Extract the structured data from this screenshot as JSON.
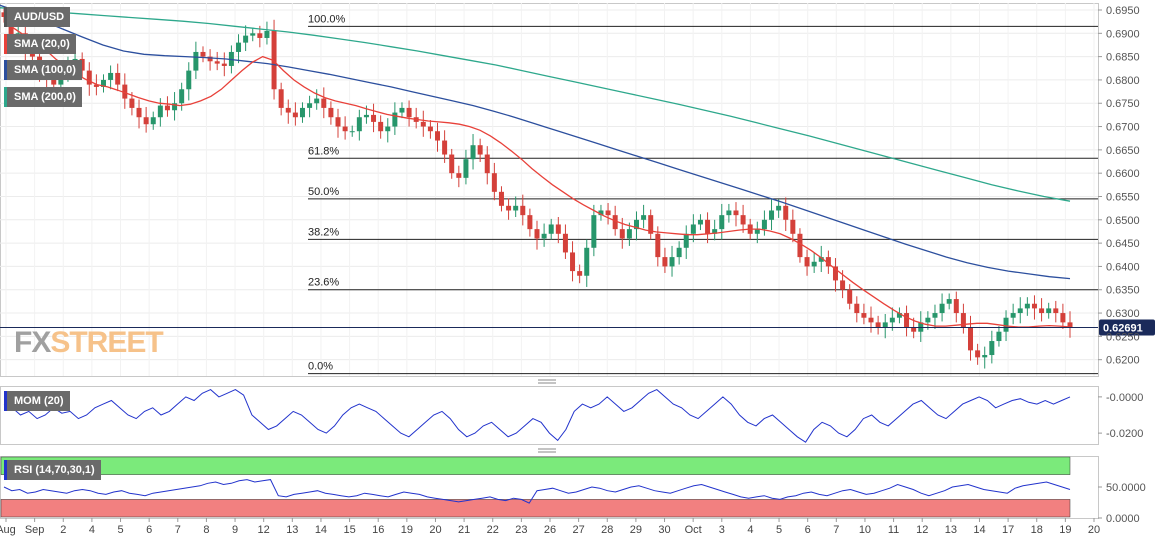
{
  "instrument": "AUD/USD",
  "watermark": {
    "part1": "FX",
    "part2": "STREET"
  },
  "indicators": {
    "sma20": "SMA (20,0)",
    "sma100": "SMA (100,0)",
    "sma200": "SMA (200,0)",
    "mom": "MOM (20)",
    "rsi": "RSI (14,70,30,1)"
  },
  "colors": {
    "sma20": "#e8413a",
    "sma100": "#2c4f9e",
    "sma200": "#2ea88c",
    "up": "#27966b",
    "down": "#d4403a",
    "mom_line": "#2233cc",
    "rsi_line": "#2233cc",
    "rsi_over": "#7bea7b",
    "rsi_under": "#f28080",
    "label_bg": "#6a6a6a"
  },
  "chart_data": [
    {
      "type": "candlestick",
      "title": "AUD/USD",
      "ylim": [
        0.6165,
        0.6965
      ],
      "y_ticks": [
        "0.6950",
        "0.6900",
        "0.6850",
        "0.6800",
        "0.6750",
        "0.6700",
        "0.6650",
        "0.6600",
        "0.6550",
        "0.6500",
        "0.6450",
        "0.6400",
        "0.6350",
        "0.6300",
        "0.6250",
        "0.6200"
      ],
      "x_ticks": [
        "Aug",
        "Sep",
        "2",
        "4",
        "5",
        "6",
        "7",
        "8",
        "9",
        "12",
        "13",
        "14",
        "15",
        "16",
        "19",
        "20",
        "21",
        "22",
        "23",
        "26",
        "27",
        "28",
        "29",
        "30",
        "Oct",
        "3",
        "4",
        "5",
        "6",
        "7",
        "10",
        "11",
        "12",
        "13",
        "14",
        "17",
        "18",
        "19",
        "20"
      ],
      "current_price": "0.62691",
      "fibonacci": [
        {
          "label": "100.0%",
          "value": 0.6915
        },
        {
          "label": "61.8%",
          "value": 0.6632
        },
        {
          "label": "50.0%",
          "value": 0.6545
        },
        {
          "label": "38.2%",
          "value": 0.6458
        },
        {
          "label": "23.6%",
          "value": 0.635
        },
        {
          "label": "0.0%",
          "value": 0.617
        }
      ],
      "close_series": [
        0.6935,
        0.6895,
        0.69,
        0.686,
        0.685,
        0.682,
        0.68,
        0.679,
        0.681,
        0.683,
        0.6845,
        0.682,
        0.679,
        0.6785,
        0.68,
        0.6815,
        0.679,
        0.676,
        0.674,
        0.672,
        0.6705,
        0.672,
        0.6745,
        0.6735,
        0.675,
        0.678,
        0.682,
        0.686,
        0.685,
        0.684,
        0.6835,
        0.683,
        0.686,
        0.688,
        0.6895,
        0.69,
        0.689,
        0.6905,
        0.678,
        0.674,
        0.673,
        0.672,
        0.674,
        0.675,
        0.676,
        0.674,
        0.672,
        0.67,
        0.669,
        0.669,
        0.672,
        0.6725,
        0.671,
        0.669,
        0.67,
        0.673,
        0.674,
        0.672,
        0.671,
        0.67,
        0.669,
        0.667,
        0.664,
        0.66,
        0.659,
        0.663,
        0.666,
        0.664,
        0.66,
        0.656,
        0.653,
        0.652,
        0.653,
        0.651,
        0.648,
        0.646,
        0.647,
        0.649,
        0.647,
        0.643,
        0.639,
        0.638,
        0.644,
        0.651,
        0.652,
        0.651,
        0.648,
        0.646,
        0.648,
        0.65,
        0.651,
        0.647,
        0.642,
        0.64,
        0.642,
        0.644,
        0.647,
        0.649,
        0.65,
        0.647,
        0.648,
        0.651,
        0.652,
        0.651,
        0.649,
        0.647,
        0.648,
        0.65,
        0.652,
        0.653,
        0.65,
        0.647,
        0.642,
        0.64,
        0.641,
        0.642,
        0.64,
        0.637,
        0.635,
        0.632,
        0.63,
        0.629,
        0.628,
        0.627,
        0.628,
        0.629,
        0.63,
        0.627,
        0.626,
        0.628,
        0.629,
        0.63,
        0.632,
        0.633,
        0.63,
        0.627,
        0.622,
        0.6205,
        0.621,
        0.624,
        0.626,
        0.629,
        0.63,
        0.631,
        0.632,
        0.631,
        0.63,
        0.631,
        0.63,
        0.628,
        0.6269
      ],
      "sma20_series": [
        0.6925,
        0.691,
        0.6895,
        0.688,
        0.6865,
        0.6845,
        0.6828,
        0.6812,
        0.68,
        0.679,
        0.6785,
        0.6778,
        0.677,
        0.6762,
        0.6755,
        0.675,
        0.6748,
        0.6745,
        0.6748,
        0.6755,
        0.6765,
        0.678,
        0.68,
        0.682,
        0.6838,
        0.685,
        0.6842,
        0.682,
        0.68,
        0.6785,
        0.6772,
        0.6762,
        0.6755,
        0.675,
        0.6745,
        0.6738,
        0.6732,
        0.6726,
        0.6722,
        0.6718,
        0.6715,
        0.6712,
        0.671,
        0.6708,
        0.6705,
        0.67,
        0.6692,
        0.668,
        0.6665,
        0.6648,
        0.663,
        0.661,
        0.6592,
        0.6575,
        0.656,
        0.6545,
        0.6532,
        0.652,
        0.6508,
        0.6498,
        0.649,
        0.6484,
        0.6478,
        0.6474,
        0.6472,
        0.647,
        0.6468,
        0.6468,
        0.647,
        0.6472,
        0.6475,
        0.6478,
        0.648,
        0.648,
        0.6476,
        0.647,
        0.646,
        0.6448,
        0.6434,
        0.6418,
        0.64,
        0.6383,
        0.6366,
        0.635,
        0.6335,
        0.632,
        0.6306,
        0.6293,
        0.6283,
        0.6276,
        0.6272,
        0.6272,
        0.6274,
        0.6276,
        0.6278,
        0.6278,
        0.6275,
        0.6272,
        0.627,
        0.627,
        0.6272,
        0.6273,
        0.6272,
        0.627
      ],
      "sma100_series": [
        0.696,
        0.6945,
        0.6928,
        0.691,
        0.6892,
        0.6875,
        0.6862,
        0.6855,
        0.6852,
        0.685,
        0.6848,
        0.6845,
        0.684,
        0.6835,
        0.6828,
        0.682,
        0.6812,
        0.6803,
        0.6794,
        0.6785,
        0.6775,
        0.6765,
        0.6755,
        0.6745,
        0.6733,
        0.672,
        0.6706,
        0.6692,
        0.6678,
        0.6664,
        0.665,
        0.6636,
        0.6622,
        0.6608,
        0.6594,
        0.658,
        0.6566,
        0.6552,
        0.6538,
        0.6523,
        0.6508,
        0.6493,
        0.6478,
        0.6463,
        0.6448,
        0.6434,
        0.642,
        0.6408,
        0.6398,
        0.639,
        0.6384,
        0.6378,
        0.6374
      ],
      "sma200_series": [
        0.6955,
        0.695,
        0.6946,
        0.6942,
        0.6938,
        0.6934,
        0.693,
        0.6926,
        0.6921,
        0.6915,
        0.6909,
        0.6903,
        0.6896,
        0.6888,
        0.688,
        0.6871,
        0.6862,
        0.6852,
        0.6842,
        0.6832,
        0.682,
        0.6808,
        0.6796,
        0.6784,
        0.6772,
        0.676,
        0.6748,
        0.6735,
        0.6722,
        0.6708,
        0.6694,
        0.668,
        0.6665,
        0.665,
        0.6635,
        0.662,
        0.6605,
        0.659,
        0.6575,
        0.6562,
        0.655,
        0.654
      ]
    },
    {
      "type": "line",
      "title": "MOM (20)",
      "ylim": [
        -0.026,
        0.006
      ],
      "y_ticks": [
        "-0.0000",
        "-0.0200"
      ],
      "values": [
        -0.004,
        -0.006,
        -0.01,
        -0.008,
        -0.012,
        -0.01,
        -0.006,
        -0.009,
        -0.008,
        -0.012,
        -0.01,
        -0.006,
        -0.004,
        -0.002,
        -0.006,
        -0.01,
        -0.012,
        -0.008,
        -0.006,
        -0.01,
        -0.008,
        -0.004,
        0.0,
        -0.002,
        0.002,
        0.004,
        0.0,
        0.002,
        0.004,
        0.001,
        -0.01,
        -0.014,
        -0.018,
        -0.016,
        -0.012,
        -0.008,
        -0.01,
        -0.014,
        -0.018,
        -0.02,
        -0.016,
        -0.01,
        -0.006,
        -0.004,
        -0.006,
        -0.008,
        -0.012,
        -0.016,
        -0.02,
        -0.022,
        -0.018,
        -0.014,
        -0.01,
        -0.008,
        -0.012,
        -0.018,
        -0.022,
        -0.02,
        -0.016,
        -0.014,
        -0.018,
        -0.022,
        -0.02,
        -0.016,
        -0.012,
        -0.014,
        -0.02,
        -0.024,
        -0.018,
        -0.008,
        -0.004,
        -0.006,
        -0.004,
        0.0,
        -0.004,
        -0.008,
        -0.006,
        -0.002,
        0.002,
        0.004,
        0.0,
        -0.004,
        -0.006,
        -0.01,
        -0.012,
        -0.008,
        -0.004,
        0.0,
        -0.004,
        -0.01,
        -0.014,
        -0.016,
        -0.012,
        -0.01,
        -0.014,
        -0.018,
        -0.022,
        -0.025,
        -0.018,
        -0.014,
        -0.016,
        -0.02,
        -0.022,
        -0.018,
        -0.012,
        -0.01,
        -0.014,
        -0.016,
        -0.012,
        -0.008,
        -0.004,
        -0.002,
        -0.006,
        -0.01,
        -0.012,
        -0.008,
        -0.004,
        -0.002,
        0.0,
        -0.002,
        -0.006,
        -0.004,
        -0.002,
        -0.001,
        -0.003,
        -0.004,
        -0.002,
        -0.004,
        -0.002,
        0.0
      ]
    },
    {
      "type": "line",
      "title": "RSI (14,70,30,1)",
      "ylim": [
        0,
        100
      ],
      "y_ticks": [
        "50.0000",
        "0.0000"
      ],
      "overbought": 70,
      "oversold": 30,
      "values": [
        50,
        44,
        46,
        40,
        42,
        46,
        44,
        42,
        40,
        44,
        46,
        44,
        40,
        38,
        42,
        44,
        40,
        38,
        36,
        40,
        42,
        44,
        46,
        48,
        50,
        52,
        56,
        58,
        54,
        56,
        60,
        62,
        58,
        60,
        62,
        36,
        34,
        38,
        40,
        42,
        44,
        40,
        38,
        36,
        34,
        36,
        40,
        38,
        36,
        34,
        38,
        42,
        40,
        38,
        34,
        32,
        30,
        28,
        26,
        28,
        30,
        32,
        34,
        30,
        28,
        32,
        30,
        24,
        44,
        46,
        48,
        44,
        40,
        42,
        46,
        50,
        48,
        44,
        42,
        46,
        50,
        52,
        48,
        44,
        42,
        40,
        44,
        48,
        52,
        54,
        50,
        46,
        42,
        38,
        34,
        32,
        34,
        36,
        32,
        30,
        34,
        36,
        40,
        42,
        38,
        36,
        40,
        44,
        46,
        42,
        38,
        40,
        44,
        48,
        54,
        50,
        46,
        40,
        36,
        40,
        44,
        50,
        52,
        54,
        50,
        46,
        44,
        42,
        40,
        48,
        52,
        54,
        56,
        58,
        54,
        50,
        46
      ]
    }
  ]
}
